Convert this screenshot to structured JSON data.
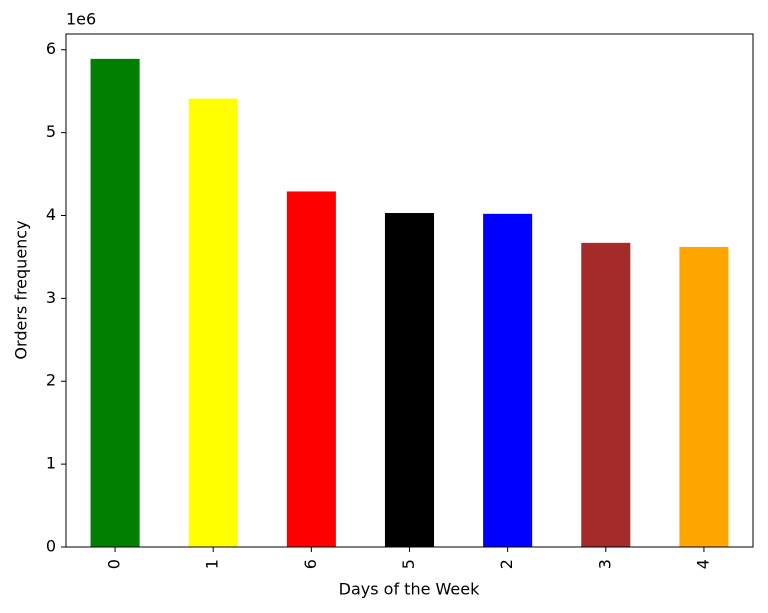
{
  "chart_data": {
    "type": "bar",
    "xlabel": "Days of the Week",
    "ylabel": "Orders frequency",
    "offset_text": "1e6",
    "categories": [
      "0",
      "1",
      "6",
      "5",
      "2",
      "3",
      "4"
    ],
    "values": [
      5.89,
      5.41,
      4.29,
      4.03,
      4.02,
      3.67,
      3.62
    ],
    "colors": [
      "#008000",
      "#ffff00",
      "#ff0000",
      "#000000",
      "#0000ff",
      "#a52a2a",
      "#ffa500"
    ],
    "ylim": [
      0,
      6.19
    ],
    "yticks": [
      0,
      1,
      2,
      3,
      4,
      5,
      6
    ],
    "grid": false
  }
}
